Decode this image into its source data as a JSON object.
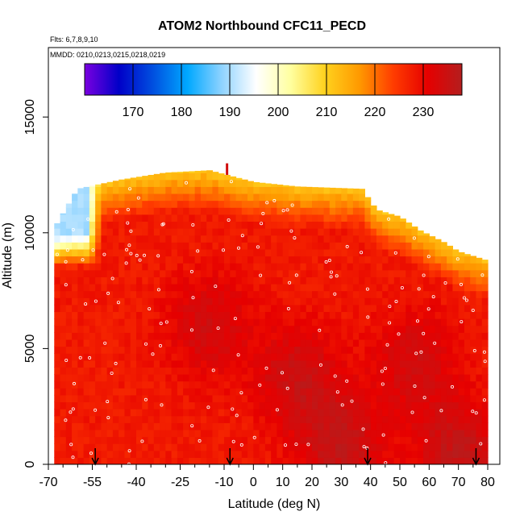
{
  "chart_data": {
    "type": "heatmap",
    "title": "ATOM2 Northbound CFC11_PECD",
    "info_lines": [
      "Flts: 6,7,8,9,10",
      "MMDD: 0210,0213,0215,0218,0219"
    ],
    "xlabel": "Latitude (deg N)",
    "ylabel": "Altitude (m)",
    "xlim": [
      -70,
      85
    ],
    "ylim": [
      0,
      18000
    ],
    "x_ticks": [
      -70,
      -55,
      -40,
      -25,
      -10,
      0,
      10,
      20,
      30,
      40,
      50,
      60,
      70,
      80
    ],
    "y_ticks": [
      0,
      5000,
      10000,
      15000
    ],
    "colorbar": {
      "range": [
        160,
        238
      ],
      "ticks": [
        170,
        180,
        190,
        200,
        210,
        220,
        230
      ],
      "colors": [
        "#7a00e0",
        "#0000c8",
        "#0050e0",
        "#00a8ff",
        "#8fd3ff",
        "#ffffff",
        "#ffffa0",
        "#ffd21e",
        "#ff9a00",
        "#ff3c00",
        "#e60000",
        "#b41e1e"
      ]
    },
    "data_extent_x": [
      -68,
      80
    ],
    "top_profile": [
      {
        "x": -68,
        "alt": 10200
      },
      {
        "x": -60,
        "alt": 11900
      },
      {
        "x": -45,
        "alt": 12300
      },
      {
        "x": -30,
        "alt": 12600
      },
      {
        "x": -15,
        "alt": 12700
      },
      {
        "x": 0,
        "alt": 12200
      },
      {
        "x": 15,
        "alt": 12000
      },
      {
        "x": 37,
        "alt": 11900
      },
      {
        "x": 42,
        "alt": 11000
      },
      {
        "x": 50,
        "alt": 10700
      },
      {
        "x": 57,
        "alt": 10100
      },
      {
        "x": 65,
        "alt": 9600
      },
      {
        "x": 70,
        "alt": 9200
      },
      {
        "x": 80,
        "alt": 8800
      }
    ],
    "spike": {
      "x": -9,
      "alt": 13000
    },
    "cold_band": {
      "x_range": [
        -68,
        -52
      ],
      "alt_range": [
        8500,
        11900
      ],
      "value": 190
    },
    "warm_patches": [
      {
        "x": 30,
        "alt": 800,
        "value": 236
      },
      {
        "x": 15,
        "alt": 3800,
        "value": 235
      },
      {
        "x": -15,
        "alt": 6000,
        "value": 234
      },
      {
        "x": 55,
        "alt": 4500,
        "value": 234
      },
      {
        "x": 70,
        "alt": 600,
        "value": 236
      }
    ],
    "arrow_positions": [
      -54,
      -8,
      39,
      76
    ]
  }
}
